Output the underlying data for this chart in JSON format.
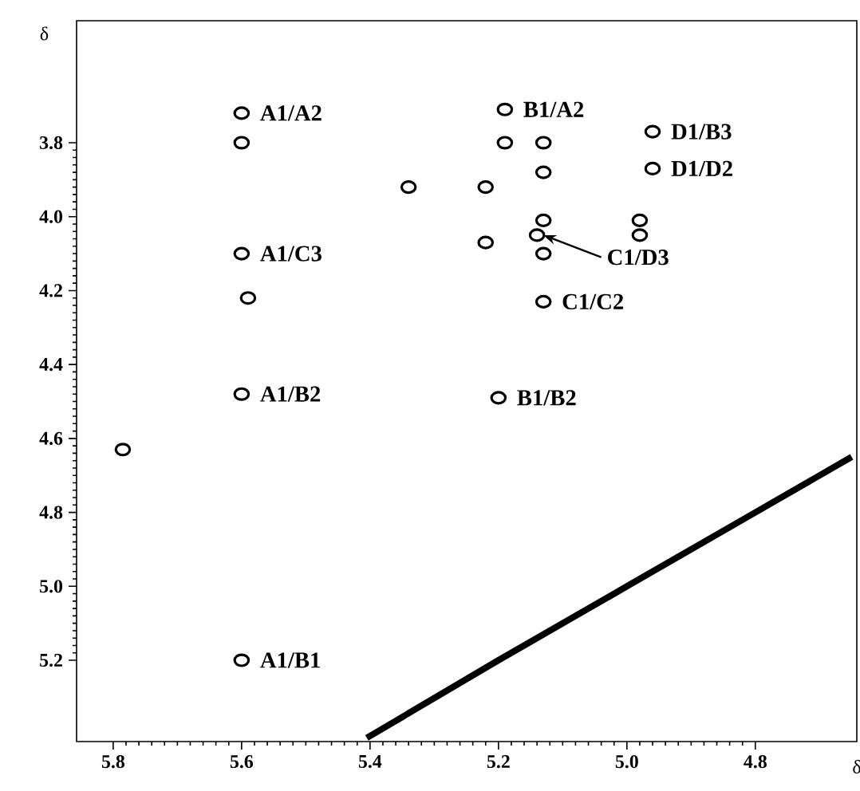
{
  "chart_data": {
    "type": "scatter",
    "xlabel": "δ",
    "ylabel": "δ",
    "xlim": [
      5.857,
      4.642
    ],
    "ylim": [
      5.42,
      3.47
    ],
    "xticks": [
      {
        "value": 5.8,
        "label": "5.8"
      },
      {
        "value": 5.6,
        "label": "5.6"
      },
      {
        "value": 5.4,
        "label": "5.4"
      },
      {
        "value": 5.2,
        "label": "5.2"
      },
      {
        "value": 5.0,
        "label": "5.0"
      },
      {
        "value": 4.8,
        "label": "4.8"
      }
    ],
    "yticks": [
      {
        "value": 3.8,
        "label": "3.8"
      },
      {
        "value": 4.0,
        "label": "4.0"
      },
      {
        "value": 4.2,
        "label": "4.2"
      },
      {
        "value": 4.4,
        "label": "4.4"
      },
      {
        "value": 4.6,
        "label": "4.6"
      },
      {
        "value": 4.8,
        "label": "4.8"
      },
      {
        "value": 5.0,
        "label": "5.0"
      },
      {
        "value": 5.2,
        "label": "5.2"
      }
    ],
    "series": [
      {
        "marker": "circle",
        "color": "#000000",
        "x": [
          5.6,
          5.6,
          5.6,
          5.6,
          5.6,
          5.59,
          5.34,
          5.785,
          5.19,
          5.19,
          5.13,
          5.13,
          5.22,
          5.13,
          5.14,
          5.22,
          5.13,
          5.13,
          4.96,
          4.96,
          4.98,
          4.98,
          5.2
        ],
        "values": [
          3.72,
          4.1,
          4.48,
          5.2,
          3.8,
          4.22,
          3.92,
          4.63,
          3.71,
          3.8,
          3.8,
          3.88,
          3.92,
          4.01,
          4.05,
          4.07,
          4.1,
          4.23,
          3.77,
          3.87,
          4.01,
          4.05,
          4.49
        ]
      },
      {
        "type": "line",
        "color": "#000000",
        "x": [
          5.405,
          5.2,
          5.0,
          4.8,
          4.65
        ],
        "values": [
          5.41,
          5.2,
          5.0,
          4.8,
          4.65
        ]
      }
    ],
    "annotations": [
      {
        "text": "A1/A2",
        "x": 5.6,
        "y": 3.72
      },
      {
        "text": "A1/C3",
        "x": 5.6,
        "y": 4.1
      },
      {
        "text": "A1/B2",
        "x": 5.6,
        "y": 4.48
      },
      {
        "text": "A1/B1",
        "x": 5.6,
        "y": 5.2
      },
      {
        "text": "B1/A2",
        "x": 5.19,
        "y": 3.71
      },
      {
        "text": "D1/B3",
        "x": 4.96,
        "y": 3.77
      },
      {
        "text": "D1/D2",
        "x": 4.96,
        "y": 3.87
      },
      {
        "text": "C1/D3",
        "x": 5.13,
        "y": 4.05
      },
      {
        "text": "C1/C2",
        "x": 5.13,
        "y": 4.23
      },
      {
        "text": "B1/B2",
        "x": 5.2,
        "y": 4.49
      }
    ]
  }
}
